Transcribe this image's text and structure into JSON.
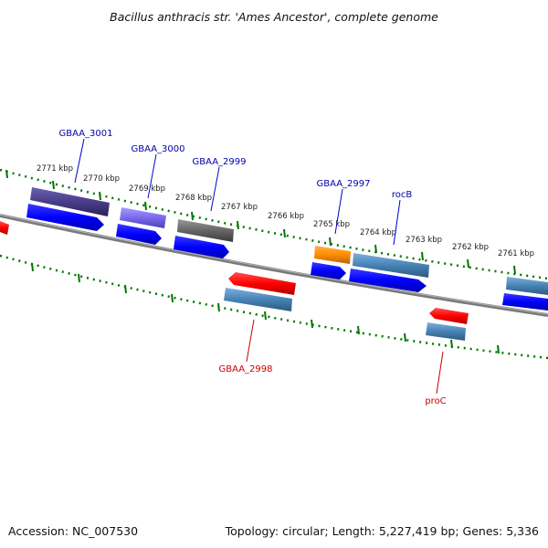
{
  "title": "Bacillus anthracis str. 'Ames Ancestor', complete genome",
  "accession": "Accession: NC_007530",
  "topology": "Topology: circular; Length: 5,227,419 bp; Genes: 5,336",
  "colors": {
    "forward": "#0000ff",
    "reverse": "#ff0000",
    "steelblue": "#4682b4",
    "darkslate": "#483d8b",
    "slatepurple": "#7b68ee",
    "gray": "#666666",
    "orange": "#ff8c00",
    "label_blue": "#0000aa",
    "label_red": "#cc0000",
    "tick_green": "#007700",
    "backbone": "#808080"
  },
  "tick_labels": [
    "2771 kbp",
    "2770 kbp",
    "2769 kbp",
    "2768 kbp",
    "2767 kbp",
    "2766 kbp",
    "2765 kbp",
    "2764 kbp",
    "2763 kbp",
    "2762 kbp",
    "2761 kbp"
  ],
  "gene_labels": [
    {
      "text": "GBAA_3001",
      "strand": "forward"
    },
    {
      "text": "GBAA_3000",
      "strand": "forward"
    },
    {
      "text": "GBAA_2999",
      "strand": "forward"
    },
    {
      "text": "GBAA_2997",
      "strand": "forward"
    },
    {
      "text": "rocB",
      "strand": "forward"
    },
    {
      "text": "GBAA_2998",
      "strand": "reverse"
    },
    {
      "text": "proC",
      "strand": "reverse"
    }
  ]
}
